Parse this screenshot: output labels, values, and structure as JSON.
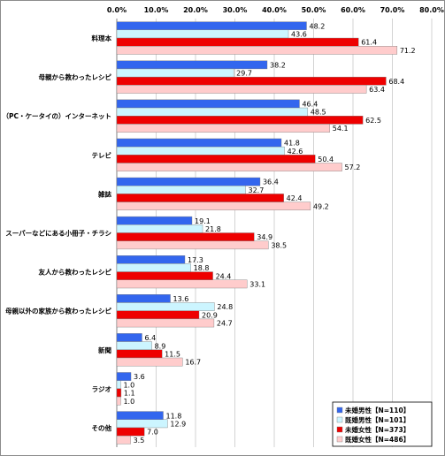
{
  "chart_data": {
    "type": "bar",
    "orientation": "horizontal",
    "xlim": [
      0,
      80
    ],
    "tick_labels": [
      "0.0%",
      "10.0%",
      "20.0%",
      "30.0%",
      "40.0%",
      "50.0%",
      "60.0%",
      "70.0%",
      "80.0%"
    ],
    "grid": true,
    "legend_position": "bottom-right",
    "categories": [
      "料理本",
      "母親から教わったレシピ",
      "（PC・ケータイの）インターネット",
      "テレビ",
      "雑誌",
      "スーパーなどにある小冊子・チラシ",
      "友人から教わったレシピ",
      "母親以外の家族から教わったレシピ",
      "新聞",
      "ラジオ",
      "その他"
    ],
    "series": [
      {
        "name": "未婚男性【N=110】",
        "color": "#3366ee",
        "values": [
          48.2,
          38.2,
          46.4,
          41.8,
          36.4,
          19.1,
          17.3,
          13.6,
          6.4,
          3.6,
          11.8
        ]
      },
      {
        "name": "既婚男性【N=101】",
        "color": "#ccf5ff",
        "values": [
          43.6,
          29.7,
          48.5,
          42.6,
          32.7,
          21.8,
          18.8,
          24.8,
          8.9,
          1.0,
          12.9
        ]
      },
      {
        "name": "未婚女性【N=373】",
        "color": "#ee0000",
        "values": [
          61.4,
          68.4,
          62.5,
          50.4,
          42.4,
          34.9,
          24.4,
          20.9,
          11.5,
          1.1,
          7.0
        ]
      },
      {
        "name": "既婚女性【N=486】",
        "color": "#ffcccc",
        "values": [
          71.2,
          63.4,
          54.1,
          57.2,
          49.2,
          38.5,
          33.1,
          24.7,
          16.7,
          1.0,
          3.5
        ]
      }
    ]
  }
}
